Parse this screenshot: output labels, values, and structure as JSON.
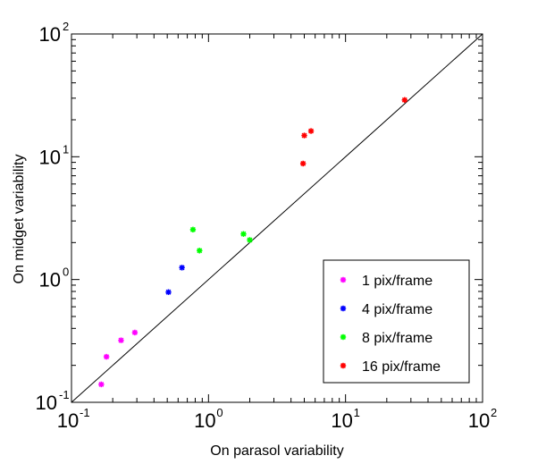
{
  "chart_data": {
    "type": "scatter",
    "xscale": "log",
    "yscale": "log",
    "xlim": [
      0.1,
      100
    ],
    "ylim": [
      0.1,
      100
    ],
    "xlabel": "On parasol variability",
    "ylabel": "On midget variability",
    "grid": false,
    "legend_position": "bottom-right",
    "reference_line": "y = x",
    "x_ticks": [
      {
        "base": "10",
        "exp": "-1",
        "value": 0.1
      },
      {
        "base": "10",
        "exp": "0",
        "value": 1
      },
      {
        "base": "10",
        "exp": "1",
        "value": 10
      },
      {
        "base": "10",
        "exp": "2",
        "value": 100
      }
    ],
    "y_ticks": [
      {
        "base": "10",
        "exp": "-1",
        "value": 0.1
      },
      {
        "base": "10",
        "exp": "0",
        "value": 1
      },
      {
        "base": "10",
        "exp": "1",
        "value": 10
      },
      {
        "base": "10",
        "exp": "2",
        "value": 100
      }
    ],
    "series": [
      {
        "name": "1 pix/frame",
        "color": "#ff00ff",
        "points": [
          {
            "x": 0.165,
            "y": 0.14
          },
          {
            "x": 0.18,
            "y": 0.235
          },
          {
            "x": 0.23,
            "y": 0.32
          },
          {
            "x": 0.29,
            "y": 0.37
          }
        ]
      },
      {
        "name": "4 pix/frame",
        "color": "#0000ff",
        "points": [
          {
            "x": 0.51,
            "y": 0.79
          },
          {
            "x": 0.64,
            "y": 1.25
          }
        ]
      },
      {
        "name": "8 pix/frame",
        "color": "#00ff00",
        "points": [
          {
            "x": 0.77,
            "y": 2.55
          },
          {
            "x": 0.86,
            "y": 1.72
          },
          {
            "x": 1.8,
            "y": 2.35
          },
          {
            "x": 2.0,
            "y": 2.1
          }
        ]
      },
      {
        "name": "16 pix/frame",
        "color": "#ff0000",
        "points": [
          {
            "x": 4.9,
            "y": 8.8
          },
          {
            "x": 5.0,
            "y": 14.9
          },
          {
            "x": 5.6,
            "y": 16.2
          },
          {
            "x": 27.0,
            "y": 29.0
          }
        ]
      }
    ]
  }
}
